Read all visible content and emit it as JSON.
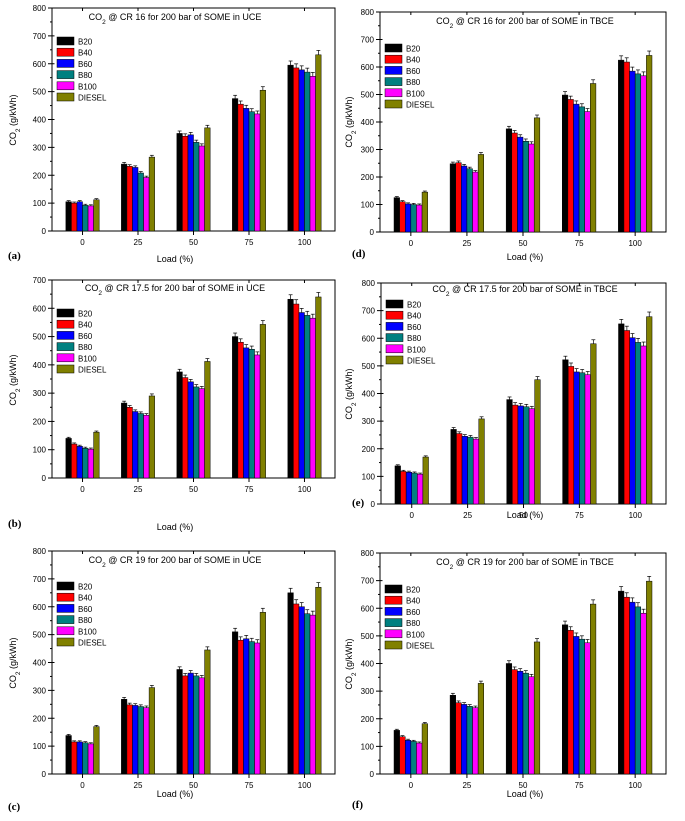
{
  "colors": {
    "B20": "#000000",
    "B40": "#ff0000",
    "B60": "#0000ff",
    "B80": "#008080",
    "B100": "#ff00ff",
    "DIESEL": "#808000"
  },
  "chart_data": [
    {
      "type": "bar",
      "panel_label": "(a)",
      "title": "CO2 @ CR 16 for 200 bar of SOME in UCE",
      "xlabel": "Load (%)",
      "ylabel": "CO2 (g/kWh)",
      "ylim": [
        0,
        800
      ],
      "yticks": [
        "0",
        "100",
        "200",
        "300",
        "400",
        "500",
        "600",
        "700",
        "800"
      ],
      "categories": [
        "0",
        "25",
        "50",
        "75",
        "100"
      ],
      "series": [
        {
          "name": "B20",
          "values": [
            105,
            240,
            350,
            475,
            595
          ]
        },
        {
          "name": "B40",
          "values": [
            100,
            232,
            340,
            455,
            585
          ]
        },
        {
          "name": "B60",
          "values": [
            105,
            228,
            345,
            440,
            578
          ]
        },
        {
          "name": "B80",
          "values": [
            92,
            208,
            318,
            428,
            570
          ]
        },
        {
          "name": "B100",
          "values": [
            90,
            192,
            305,
            420,
            555
          ]
        },
        {
          "name": "DIESEL",
          "values": [
            112,
            265,
            370,
            505,
            632
          ]
        }
      ]
    },
    {
      "type": "bar",
      "panel_label": "(b)",
      "title": "CO2 @ CR 17.5 for 200 bar of SOME in UCE",
      "xlabel": "Load (%)",
      "ylabel": "CO2 (g/kWh)",
      "ylim": [
        0,
        700
      ],
      "yticks": [
        "0",
        "100",
        "200",
        "300",
        "400",
        "500",
        "600",
        "700"
      ],
      "categories": [
        "0",
        "25",
        "50",
        "75",
        "100"
      ],
      "series": [
        {
          "name": "B20",
          "values": [
            140,
            265,
            375,
            500,
            632
          ]
        },
        {
          "name": "B40",
          "values": [
            120,
            250,
            355,
            480,
            615
          ]
        },
        {
          "name": "B60",
          "values": [
            112,
            235,
            340,
            460,
            585
          ]
        },
        {
          "name": "B80",
          "values": [
            105,
            228,
            322,
            455,
            575
          ]
        },
        {
          "name": "B100",
          "values": [
            102,
            222,
            316,
            435,
            565
          ]
        },
        {
          "name": "DIESEL",
          "values": [
            162,
            290,
            412,
            543,
            640
          ]
        }
      ]
    },
    {
      "type": "bar",
      "panel_label": "(c)",
      "title": "CO2 @ CR 19 for 200 bar of SOME in UCE",
      "xlabel": "Load (%)",
      "ylabel": "CO2 (g/kWh)",
      "ylim": [
        0,
        800
      ],
      "yticks": [
        "0",
        "100",
        "200",
        "300",
        "400",
        "500",
        "600",
        "700",
        "800"
      ],
      "categories": [
        "0",
        "25",
        "50",
        "75",
        "100"
      ],
      "series": [
        {
          "name": "B20",
          "values": [
            138,
            268,
            375,
            510,
            650
          ]
        },
        {
          "name": "B40",
          "values": [
            115,
            248,
            352,
            480,
            610
          ]
        },
        {
          "name": "B60",
          "values": [
            115,
            246,
            362,
            485,
            600
          ]
        },
        {
          "name": "B80",
          "values": [
            112,
            242,
            352,
            475,
            575
          ]
        },
        {
          "name": "B100",
          "values": [
            108,
            238,
            345,
            470,
            570
          ]
        },
        {
          "name": "DIESEL",
          "values": [
            170,
            310,
            445,
            580,
            670
          ]
        }
      ]
    },
    {
      "type": "bar",
      "panel_label": "(d)",
      "title": "CO2 @ CR 16 for 200 bar of SOME in TBCE",
      "xlabel": "Load (%)",
      "ylabel": "CO2 (g/kWh)",
      "ylim": [
        0,
        800
      ],
      "yticks": [
        "0",
        "100",
        "200",
        "300",
        "400",
        "500",
        "600",
        "700",
        "800"
      ],
      "categories": [
        "0",
        "25",
        "50",
        "75",
        "100"
      ],
      "series": [
        {
          "name": "B20",
          "values": [
            125,
            248,
            375,
            498,
            625
          ]
        },
        {
          "name": "B40",
          "values": [
            110,
            252,
            360,
            482,
            618
          ]
        },
        {
          "name": "B60",
          "values": [
            102,
            240,
            345,
            465,
            585
          ]
        },
        {
          "name": "B80",
          "values": [
            100,
            230,
            330,
            455,
            575
          ]
        },
        {
          "name": "B100",
          "values": [
            98,
            218,
            320,
            438,
            568
          ]
        },
        {
          "name": "DIESEL",
          "values": [
            145,
            282,
            415,
            540,
            642
          ]
        }
      ]
    },
    {
      "type": "bar",
      "panel_label": "(e)",
      "title": "CO2 @ CR 17.5 for 200 bar of SOME in TBCE",
      "xlabel": "Load (%)",
      "ylabel": "CO2 (g/kWh)",
      "ylim": [
        0,
        800
      ],
      "yticks": [
        "0",
        "100",
        "200",
        "300",
        "400",
        "500",
        "600",
        "700",
        "800"
      ],
      "categories": [
        "0",
        "25",
        "50",
        "75",
        "100"
      ],
      "series": [
        {
          "name": "B20",
          "values": [
            138,
            270,
            378,
            522,
            652
          ]
        },
        {
          "name": "B40",
          "values": [
            118,
            255,
            358,
            498,
            628
          ]
        },
        {
          "name": "B60",
          "values": [
            115,
            245,
            355,
            478,
            602
          ]
        },
        {
          "name": "B80",
          "values": [
            112,
            242,
            352,
            475,
            585
          ]
        },
        {
          "name": "B100",
          "values": [
            108,
            235,
            345,
            468,
            572
          ]
        },
        {
          "name": "DIESEL",
          "values": [
            170,
            308,
            450,
            580,
            678
          ]
        }
      ]
    },
    {
      "type": "bar",
      "panel_label": "(f)",
      "title": "CO2 @ CR 19 for 200 bar of SOME in TBCE",
      "xlabel": "Load (%)",
      "ylabel": "CO2 (g/kWh)",
      "ylim": [
        0,
        800
      ],
      "yticks": [
        "0",
        "100",
        "200",
        "300",
        "400",
        "500",
        "600",
        "700",
        "800"
      ],
      "categories": [
        "0",
        "25",
        "50",
        "75",
        "100"
      ],
      "series": [
        {
          "name": "B20",
          "values": [
            158,
            285,
            400,
            540,
            662
          ]
        },
        {
          "name": "B40",
          "values": [
            135,
            258,
            378,
            520,
            640
          ]
        },
        {
          "name": "B60",
          "values": [
            122,
            252,
            372,
            498,
            622
          ]
        },
        {
          "name": "B80",
          "values": [
            118,
            245,
            365,
            488,
            605
          ]
        },
        {
          "name": "B100",
          "values": [
            112,
            240,
            352,
            475,
            582
          ]
        },
        {
          "name": "DIESEL",
          "values": [
            182,
            328,
            478,
            615,
            698
          ]
        }
      ]
    }
  ]
}
